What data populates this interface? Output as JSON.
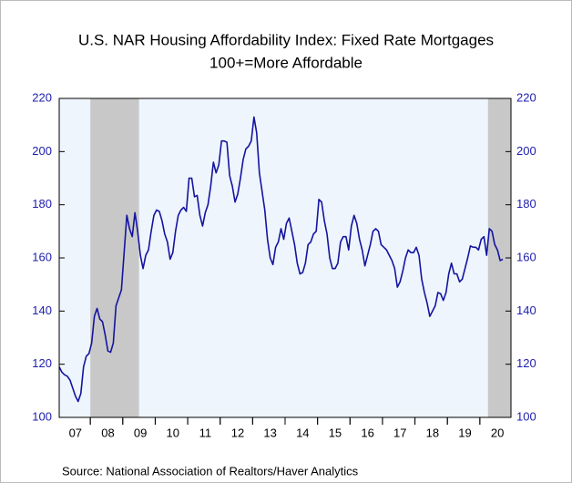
{
  "chart_data": {
    "type": "line",
    "title": "U.S. NAR Housing Affordability Index: Fixed Rate Mortgages",
    "subtitle": "100+=More Affordable",
    "source": "Source:  National Association of Realtors/Haver Analytics",
    "categories": [
      null,
      null,
      null,
      null,
      null,
      null,
      "07",
      null,
      null,
      null,
      null,
      null,
      null,
      null,
      null,
      null,
      null,
      null,
      "08",
      null,
      null,
      null,
      null,
      null,
      null,
      null,
      null,
      null,
      null,
      null,
      "09",
      null,
      null,
      null,
      null,
      null,
      null,
      null,
      null,
      null,
      null,
      null,
      "10",
      null,
      null,
      null,
      null,
      null,
      null,
      null,
      null,
      null,
      null,
      null,
      "11",
      null,
      null,
      null,
      null,
      null,
      null,
      null,
      null,
      null,
      null,
      null,
      "12",
      null,
      null,
      null,
      null,
      null,
      null,
      null,
      null,
      null,
      null,
      null,
      "13",
      null,
      null,
      null,
      null,
      null,
      null,
      null,
      null,
      null,
      null,
      null,
      "14",
      null,
      null,
      null,
      null,
      null,
      null,
      null,
      null,
      null,
      null,
      null,
      "15",
      null,
      null,
      null,
      null,
      null,
      null,
      null,
      null,
      null,
      null,
      null,
      "16",
      null,
      null,
      null,
      null,
      null,
      null,
      null,
      null,
      null,
      null,
      null,
      "17",
      null,
      null,
      null,
      null,
      null,
      null,
      null,
      null,
      null,
      null,
      null,
      "18",
      null,
      null,
      null,
      null,
      null,
      null,
      null,
      null,
      null,
      null,
      null,
      "19",
      null,
      null,
      null,
      null,
      null,
      null,
      null,
      null,
      null,
      null,
      null,
      "20",
      null,
      null
    ],
    "series": [
      {
        "color": "#1414a0",
        "values": [
          119,
          117,
          116,
          115.5,
          114,
          111,
          108,
          106,
          109,
          119,
          123,
          124,
          128,
          138,
          141,
          137,
          136,
          131,
          125,
          124.5,
          128,
          142,
          145,
          148,
          162,
          176,
          171,
          168,
          177,
          170,
          161,
          156,
          161,
          163,
          170,
          176,
          178,
          177.5,
          174,
          169,
          166,
          159.5,
          162,
          170,
          176,
          178,
          179,
          177.5,
          190,
          190,
          183,
          183.5,
          176,
          172,
          177,
          180,
          187,
          196,
          192,
          195,
          204,
          204,
          203.5,
          191,
          187,
          181,
          184,
          190,
          197,
          201,
          202,
          204,
          213,
          207,
          192,
          185,
          178,
          167,
          160,
          157.5,
          164,
          166,
          171,
          167,
          173,
          175,
          170,
          165,
          158,
          154,
          154.5,
          158,
          165,
          166,
          169,
          170,
          182,
          181,
          174,
          169,
          160,
          156,
          156,
          158,
          166,
          168,
          168,
          163,
          172,
          176,
          173,
          167,
          163,
          157,
          161,
          165,
          170,
          171,
          170,
          165,
          164,
          163,
          161,
          159,
          156,
          149,
          151,
          155,
          160,
          163,
          162,
          162,
          164,
          161,
          152,
          147,
          143,
          138,
          140,
          142,
          147,
          146.5,
          144,
          147,
          154,
          158,
          154,
          154,
          151,
          152,
          156,
          160,
          164.5,
          164,
          164,
          163,
          167,
          168,
          161,
          171,
          170,
          165,
          163,
          159,
          159.5
        ]
      }
    ],
    "xlim": [
      0,
      167
    ],
    "shading": [
      {
        "start": 11.5,
        "end": 29.5
      },
      {
        "start": 158.5,
        "end": 167
      }
    ],
    "shading_color": "#c8c8c8",
    "plot_background": "#eef5fc",
    "ylim": [
      100,
      220
    ],
    "yticks": [
      100,
      120,
      140,
      160,
      180,
      200,
      220
    ],
    "tick_color": "#2020b0"
  }
}
